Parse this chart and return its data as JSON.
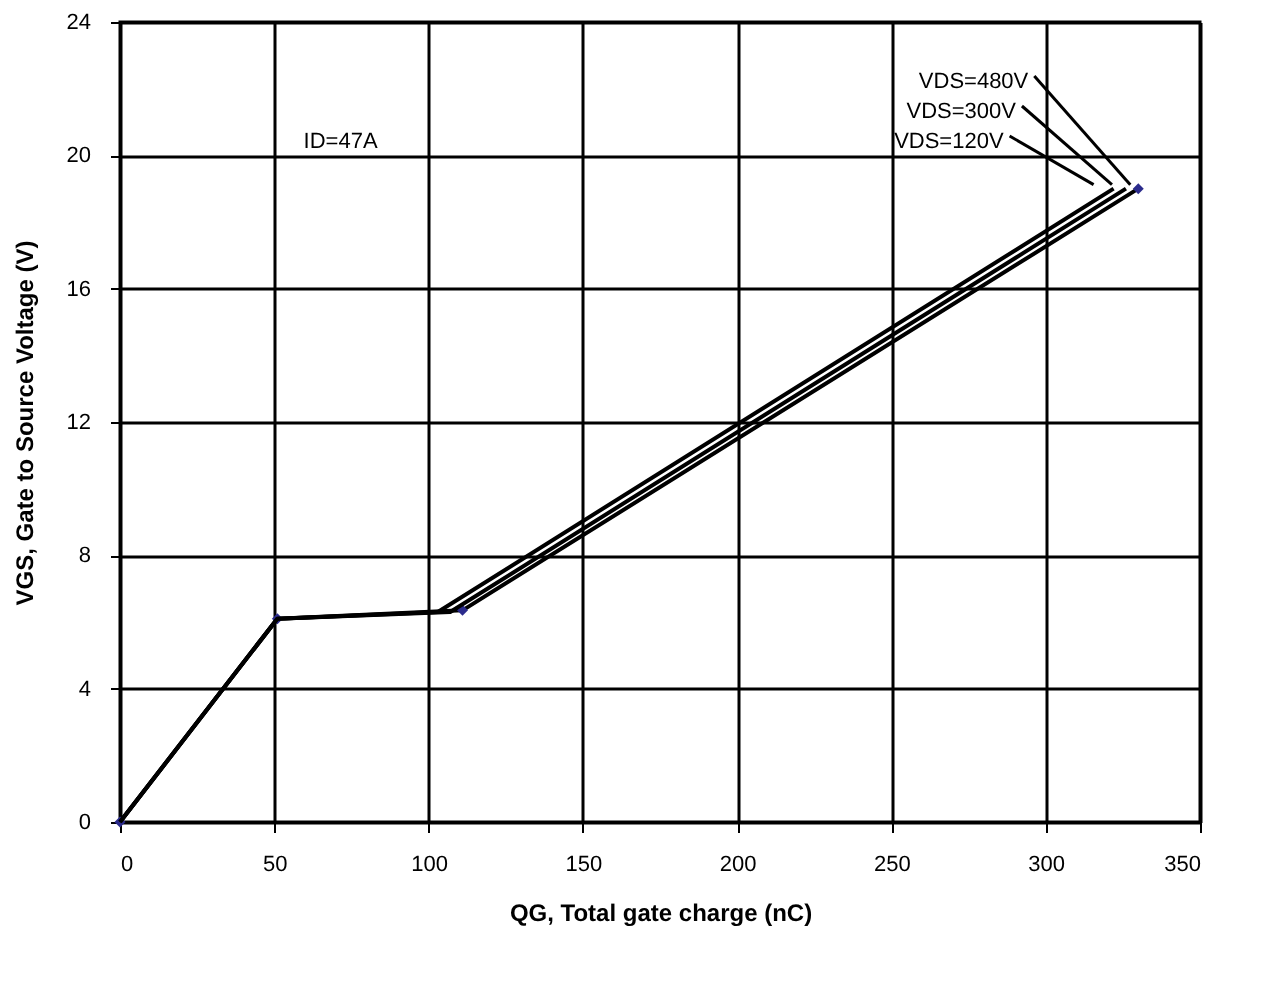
{
  "chart_data": {
    "type": "line",
    "xlabel": "QG, Total gate charge (nC)",
    "ylabel": "VGS, Gate to Source Voltage (V)",
    "xlim": [
      0,
      350
    ],
    "xticks": [
      0,
      50,
      100,
      150,
      200,
      250,
      300,
      350
    ],
    "ylim": [
      0,
      24
    ],
    "yticks": [
      0,
      4,
      8,
      12,
      16,
      20,
      24
    ],
    "grid": true,
    "line_style": "solid",
    "annotations": [
      "ID=47A"
    ],
    "series": [
      {
        "name": "VDS=480V",
        "color": "#000000",
        "x": [
          0,
          51,
          111,
          330
        ],
        "values": [
          0,
          6.1,
          6.35,
          19
        ],
        "marker": "diamond"
      },
      {
        "name": "VDS=300V",
        "color": "#000000",
        "x": [
          0,
          51,
          107,
          326
        ],
        "values": [
          0,
          6.1,
          6.3,
          19
        ],
        "marker": "none"
      },
      {
        "name": "VDS=120V",
        "color": "#000000",
        "x": [
          0,
          51,
          103,
          322
        ],
        "values": [
          0,
          6.1,
          6.3,
          19
        ],
        "marker": "none"
      }
    ]
  }
}
